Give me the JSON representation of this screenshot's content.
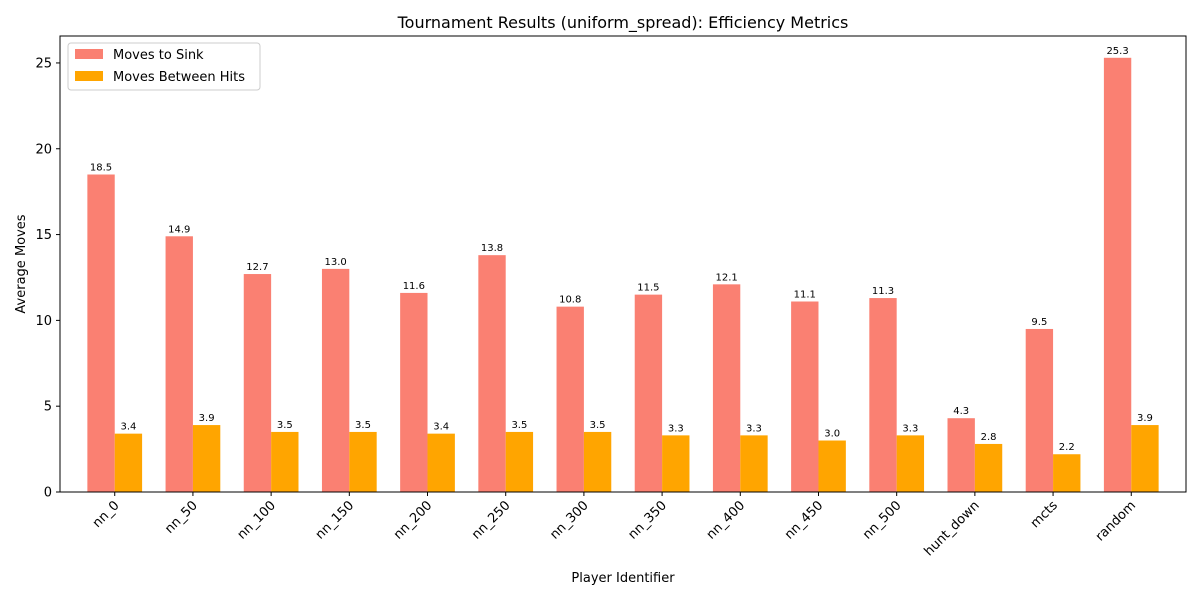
{
  "chart_data": {
    "type": "bar",
    "title": "Tournament Results (uniform_spread): Efficiency Metrics",
    "xlabel": "Player Identifier",
    "ylabel": "Average Moves",
    "categories": [
      "nn_0",
      "nn_50",
      "nn_100",
      "nn_150",
      "nn_200",
      "nn_250",
      "nn_300",
      "nn_350",
      "nn_400",
      "nn_450",
      "nn_500",
      "hunt_down",
      "mcts",
      "random"
    ],
    "series": [
      {
        "name": "Moves to Sink",
        "color": "#fa8072",
        "values": [
          18.5,
          14.9,
          12.7,
          13.0,
          11.6,
          13.8,
          10.8,
          11.5,
          12.1,
          11.1,
          11.3,
          4.3,
          9.5,
          25.3
        ]
      },
      {
        "name": "Moves Between Hits",
        "color": "#ffa500",
        "values": [
          3.4,
          3.9,
          3.5,
          3.5,
          3.4,
          3.5,
          3.5,
          3.3,
          3.3,
          3.0,
          3.3,
          2.8,
          2.2,
          3.9
        ]
      }
    ],
    "ylim": [
      0,
      26.57
    ],
    "yticks": [
      0,
      5,
      10,
      15,
      20,
      25
    ],
    "legend_position": "top-left",
    "grid": false,
    "value_labels_decimals": 1
  }
}
